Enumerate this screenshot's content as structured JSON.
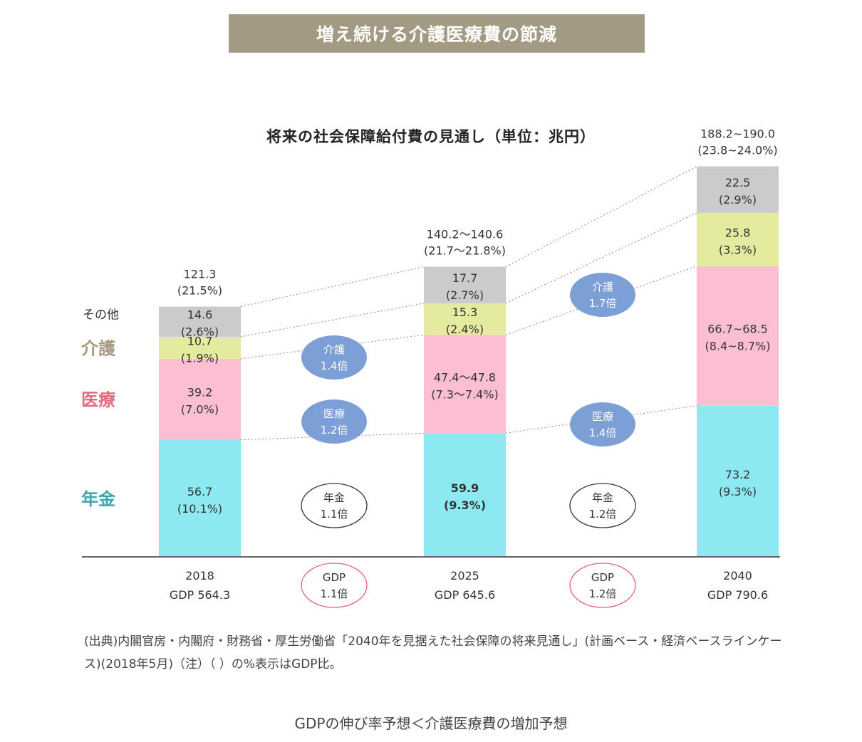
{
  "banner_title": "増え続ける介護医療費の節減",
  "chart_data": {
    "type": "bar",
    "stacked": true,
    "title": "将来の社会保障給付費の見通し（単位：兆円）",
    "unit": "兆円",
    "categories": [
      {
        "year": "2018",
        "gdp": "GDP 564.3",
        "total_label": "121.3",
        "total_pct": "(21.5%)"
      },
      {
        "year": "2025",
        "gdp": "GDP 645.6",
        "total_label": "140.2～140.6",
        "total_pct": "(21.7～21.8%)"
      },
      {
        "year": "2040",
        "gdp": "GDP 790.6",
        "total_label": "188.2~190.0",
        "total_pct": "(23.8~24.0%)"
      }
    ],
    "series": [
      {
        "name": "年金",
        "color": "#8ce9f2",
        "label_color": "#3aa6ad",
        "values": [
          56.7,
          59.9,
          73.2
        ],
        "value_labels": [
          "56.7",
          "59.9",
          "73.2"
        ],
        "pct_labels": [
          "(10.1%)",
          "(9.3%)",
          "(9.3%)"
        ]
      },
      {
        "name": "医療",
        "color": "#fcbfd2",
        "label_color": "#e36c7c",
        "values": [
          39.2,
          47.6,
          67.6
        ],
        "value_labels": [
          "39.2",
          "47.4～47.8",
          "66.7~68.5"
        ],
        "pct_labels": [
          "(7.0%)",
          "(7.3～7.4%)",
          "(8.4~8.7%)"
        ]
      },
      {
        "name": "介護",
        "color": "#e4eb9e",
        "label_color": "#a89a82",
        "values": [
          10.7,
          15.3,
          25.8
        ],
        "value_labels": [
          "10.7",
          "15.3",
          "25.8"
        ],
        "pct_labels": [
          "(1.9%)",
          "(2.4%)",
          "(3.3%)"
        ]
      },
      {
        "name": "その他",
        "color": "#cbcbcb",
        "label_color": "#333333",
        "values": [
          14.6,
          17.7,
          22.5
        ],
        "value_labels": [
          "14.6",
          "17.7",
          "22.5"
        ],
        "pct_labels": [
          "(2.6%)",
          "(2.7%)",
          "(2.9%)"
        ]
      }
    ],
    "growth_bubbles": [
      {
        "between": 0,
        "row": "介護",
        "line1": "介護",
        "line2": "1.4倍",
        "style": "blue"
      },
      {
        "between": 0,
        "row": "医療",
        "line1": "医療",
        "line2": "1.2倍",
        "style": "blue"
      },
      {
        "between": 0,
        "row": "年金",
        "line1": "年金",
        "line2": "1.1倍",
        "style": "outline-dark"
      },
      {
        "between": 0,
        "row": "GDP",
        "line1": "GDP",
        "line2": "1.1倍",
        "style": "outline-red"
      },
      {
        "between": 1,
        "row": "介護",
        "line1": "介護",
        "line2": "1.7倍",
        "style": "blue"
      },
      {
        "between": 1,
        "row": "医療",
        "line1": "医療",
        "line2": "1.4倍",
        "style": "blue"
      },
      {
        "between": 1,
        "row": "年金",
        "line1": "年金",
        "line2": "1.2倍",
        "style": "outline-dark"
      },
      {
        "between": 1,
        "row": "GDP",
        "line1": "GDP",
        "line2": "1.2倍",
        "style": "outline-red"
      }
    ]
  },
  "source_note": "(出典)内閣官房・内閣府・財務省・厚生労働省「2040年を見据えた社会保障の将来見通し」(計画ベース・経済ベースラインケース)(2018年5月)（注）（ ）の%表示はGDP比。",
  "caption": "GDPの伸び率予想＜介護医療費の増加予想",
  "colors": {
    "banner": "#a39a84",
    "bubble_blue": "#7c9fd6",
    "bubble_red": "#e8646c",
    "axis": "#666666"
  }
}
